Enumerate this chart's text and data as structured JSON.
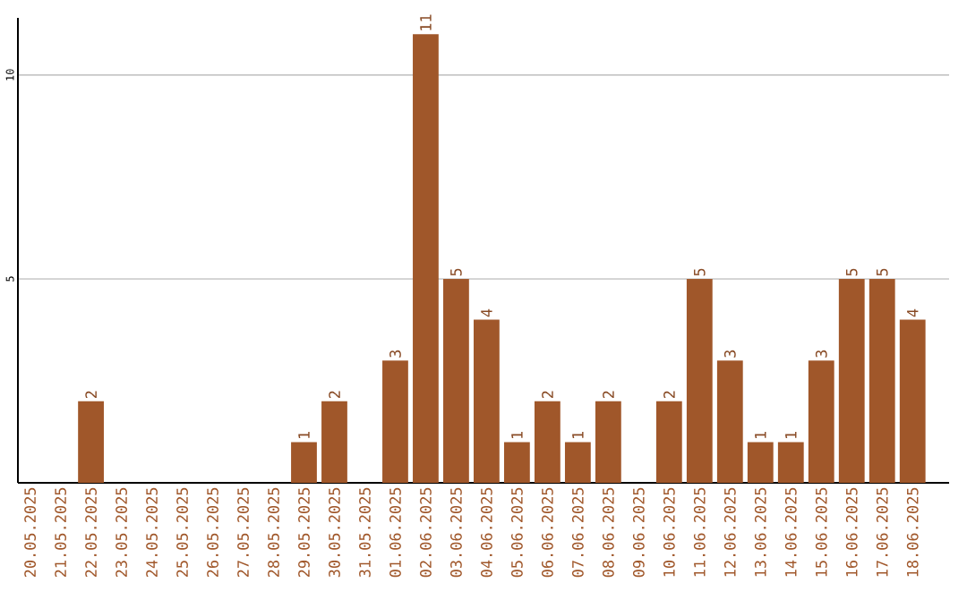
{
  "chart_data": {
    "type": "bar",
    "categories": [
      "20.05.2025",
      "21.05.2025",
      "22.05.2025",
      "23.05.2025",
      "24.05.2025",
      "25.05.2025",
      "26.05.2025",
      "27.05.2025",
      "28.05.2025",
      "29.05.2025",
      "30.05.2025",
      "31.05.2025",
      "01.06.2025",
      "02.06.2025",
      "03.06.2025",
      "04.06.2025",
      "05.06.2025",
      "06.06.2025",
      "07.06.2025",
      "08.06.2025",
      "09.06.2025",
      "10.06.2025",
      "11.06.2025",
      "12.06.2025",
      "13.06.2025",
      "14.06.2025",
      "15.06.2025",
      "16.06.2025",
      "17.06.2025",
      "18.06.2025"
    ],
    "values": [
      0,
      0,
      2,
      0,
      0,
      0,
      0,
      0,
      0,
      1,
      2,
      0,
      3,
      11,
      5,
      4,
      1,
      2,
      1,
      2,
      0,
      2,
      5,
      3,
      1,
      1,
      3,
      5,
      5,
      4
    ],
    "value_labels": [
      null,
      null,
      "2",
      null,
      null,
      null,
      null,
      null,
      null,
      "1",
      "2",
      null,
      "3",
      "11",
      "5",
      "4",
      "1",
      "2",
      "1",
      "2",
      null,
      "2",
      "5",
      "3",
      "1",
      "1",
      "3",
      "5",
      "5",
      "4"
    ],
    "color": "#a0572a",
    "ylim": [
      0,
      11.4
    ],
    "yticks": [
      5,
      10
    ],
    "grid": "y"
  }
}
